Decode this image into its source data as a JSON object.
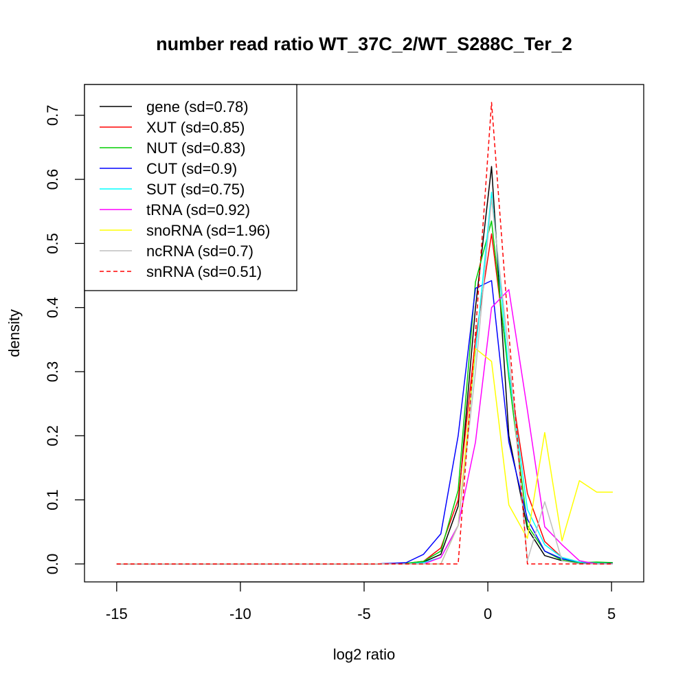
{
  "chart_data": {
    "type": "line",
    "title": "number read ratio WT_37C_2/WT_S288C_Ter_2",
    "xlabel": "log2 ratio",
    "ylabel": "density",
    "xlim": [
      -16.3,
      6.3
    ],
    "ylim": [
      -0.028,
      0.748
    ],
    "x_ticks": [
      -15,
      -10,
      -5,
      0,
      5
    ],
    "x_tick_labels": [
      "-15",
      "-10",
      "-5",
      "0",
      "5"
    ],
    "y_ticks": [
      0.0,
      0.1,
      0.2,
      0.3,
      0.4,
      0.5,
      0.6,
      0.7
    ],
    "y_tick_labels": [
      "0.0",
      "0.1",
      "0.2",
      "0.3",
      "0.4",
      "0.5",
      "0.6",
      "0.7"
    ],
    "grid": false,
    "legend_position": "top-left",
    "series": [
      {
        "name": "gene (sd=0.78)",
        "color": "#000000",
        "dash": "solid",
        "x": [
          -15,
          -4.5,
          -3.3,
          -2.6,
          -1.9,
          -1.2,
          -0.5,
          0.15,
          0.85,
          1.6,
          2.3,
          3.0,
          3.7,
          4.4,
          5.05
        ],
        "y": [
          0,
          0,
          0.001,
          0.003,
          0.015,
          0.09,
          0.4,
          0.62,
          0.2,
          0.055,
          0.013,
          0.005,
          0.002,
          0.001,
          0.0005
        ]
      },
      {
        "name": "XUT (sd=0.85)",
        "color": "#ff0000",
        "dash": "solid",
        "x": [
          -15,
          -4.5,
          -3.3,
          -2.6,
          -1.9,
          -1.2,
          -0.5,
          0.15,
          0.85,
          1.6,
          2.3,
          3.0,
          3.7,
          4.4,
          5.05
        ],
        "y": [
          0,
          0,
          0.001,
          0.004,
          0.025,
          0.1,
          0.35,
          0.515,
          0.3,
          0.11,
          0.035,
          0.01,
          0.003,
          0.001,
          0.0005
        ]
      },
      {
        "name": "NUT (sd=0.83)",
        "color": "#00cd00",
        "dash": "solid",
        "x": [
          -15,
          -4.5,
          -3.3,
          -2.6,
          -1.9,
          -1.2,
          -0.5,
          0.15,
          0.85,
          1.6,
          2.3,
          3.0,
          3.7,
          4.4,
          5.05
        ],
        "y": [
          0,
          0,
          0.001,
          0.004,
          0.02,
          0.115,
          0.44,
          0.535,
          0.29,
          0.06,
          0.02,
          0.006,
          0.002,
          0.003,
          0.002
        ]
      },
      {
        "name": "CUT (sd=0.9)",
        "color": "#0000ff",
        "dash": "solid",
        "x": [
          -15,
          -4.5,
          -3.3,
          -2.6,
          -1.9,
          -1.2,
          -0.5,
          0.15,
          0.85,
          1.6,
          2.3,
          3.0,
          3.7,
          4.4,
          5.05
        ],
        "y": [
          0,
          0,
          0.002,
          0.015,
          0.047,
          0.2,
          0.43,
          0.442,
          0.19,
          0.07,
          0.02,
          0.008,
          0.003,
          0.001,
          0.0005
        ]
      },
      {
        "name": "SUT (sd=0.75)",
        "color": "#00ffff",
        "dash": "solid",
        "x": [
          -15,
          -4.5,
          -3.3,
          -2.6,
          -1.9,
          -1.2,
          -0.5,
          0.15,
          0.85,
          1.6,
          2.3,
          3.0,
          3.7,
          4.4,
          5.05
        ],
        "y": [
          0,
          0,
          0,
          0.002,
          0.01,
          0.06,
          0.33,
          0.58,
          0.3,
          0.085,
          0.03,
          0.01,
          0.003,
          0.001,
          0
        ]
      },
      {
        "name": "tRNA (sd=0.92)",
        "color": "#ff00ff",
        "dash": "solid",
        "x": [
          -15,
          -4.5,
          -3.3,
          -2.6,
          -1.9,
          -1.2,
          -0.5,
          0.15,
          0.85,
          1.6,
          2.3,
          3.0,
          3.7,
          4.4,
          5.05
        ],
        "y": [
          0,
          0,
          0,
          0,
          0.01,
          0.06,
          0.19,
          0.4,
          0.428,
          0.24,
          0.058,
          0.03,
          0.005,
          0,
          0
        ]
      },
      {
        "name": "snoRNA (sd=1.96)",
        "color": "#ffff00",
        "dash": "solid",
        "x": [
          -15,
          -4.5,
          -3.3,
          -2.6,
          -1.9,
          -1.2,
          -0.5,
          0.15,
          0.85,
          1.6,
          2.3,
          3.0,
          3.7,
          4.4,
          5.05
        ],
        "y": [
          0,
          0,
          0,
          0,
          0,
          0.06,
          0.336,
          0.316,
          0.092,
          0.04,
          0.205,
          0.036,
          0.13,
          0.112,
          0.112
        ]
      },
      {
        "name": "ncRNA (sd=0.7)",
        "color": "#bebebe",
        "dash": "solid",
        "x": [
          -15,
          -4.5,
          -3.3,
          -2.6,
          -1.9,
          -1.2,
          -0.5,
          0.15,
          0.85,
          1.6,
          2.3,
          3.0,
          3.7,
          4.4,
          5.05
        ],
        "y": [
          0,
          0,
          0,
          0,
          0,
          0.06,
          0.3,
          0.57,
          0.33,
          0.005,
          0.097,
          0.005,
          0,
          0,
          0
        ]
      },
      {
        "name": "snRNA (sd=0.51)",
        "color": "#ff0000",
        "dash": "dashed",
        "x": [
          -15,
          -4.5,
          -3.3,
          -2.6,
          -1.9,
          -1.2,
          -0.5,
          0.15,
          0.85,
          1.6,
          2.3,
          3.0,
          3.7,
          4.4,
          5.05
        ],
        "y": [
          0,
          0,
          0,
          0,
          0,
          0,
          0.36,
          0.72,
          0.36,
          0,
          0,
          0,
          0,
          0,
          0
        ]
      }
    ]
  }
}
